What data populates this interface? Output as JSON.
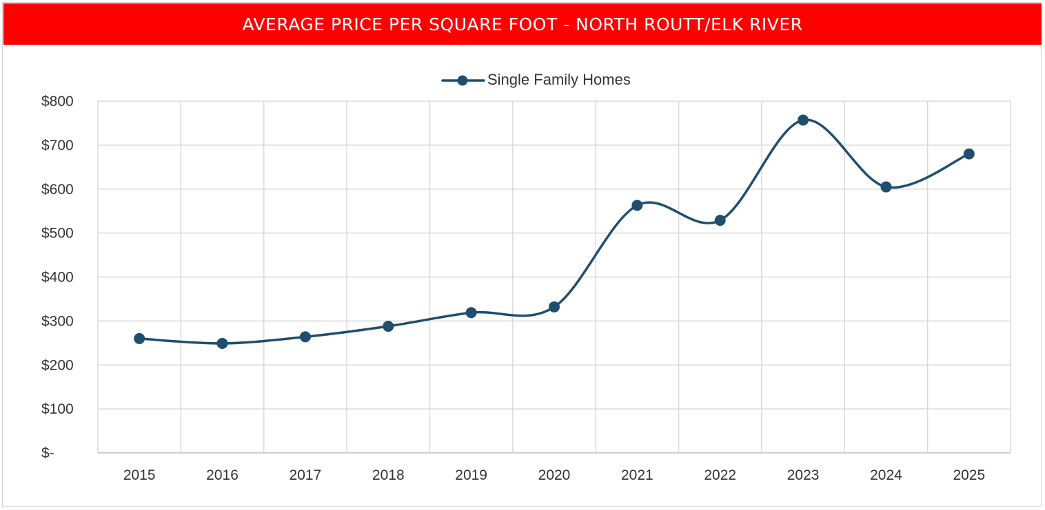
{
  "chart_data": {
    "type": "line",
    "title": "AVERAGE PRICE PER SQUARE FOOT - NORTH ROUTT/ELK RIVER",
    "categories": [
      "2015",
      "2016",
      "2017",
      "2018",
      "2019",
      "2020",
      "2021",
      "2022",
      "2023",
      "2024",
      "2025"
    ],
    "series": [
      {
        "name": "Single Family Homes",
        "values": [
          260,
          249,
          264,
          288,
          319,
          332,
          563,
          529,
          757,
          605,
          680
        ],
        "color": "#1f4e6e"
      }
    ],
    "ylim": [
      0,
      800
    ],
    "y_ticks": [
      0,
      100,
      200,
      300,
      400,
      500,
      600,
      700,
      800
    ],
    "y_tick_labels": [
      "$-",
      "$100",
      "$200",
      "$300",
      "$400",
      "$500",
      "$600",
      "$700",
      "$800"
    ],
    "xlabel": "",
    "ylabel": "",
    "grid": true,
    "legend_position": "top-center",
    "smooth": true,
    "colors": {
      "title_bar": "#ff0000",
      "title_text": "#ffffff",
      "gridline": "#d9d9d9",
      "axis": "#bfbfbf"
    }
  }
}
